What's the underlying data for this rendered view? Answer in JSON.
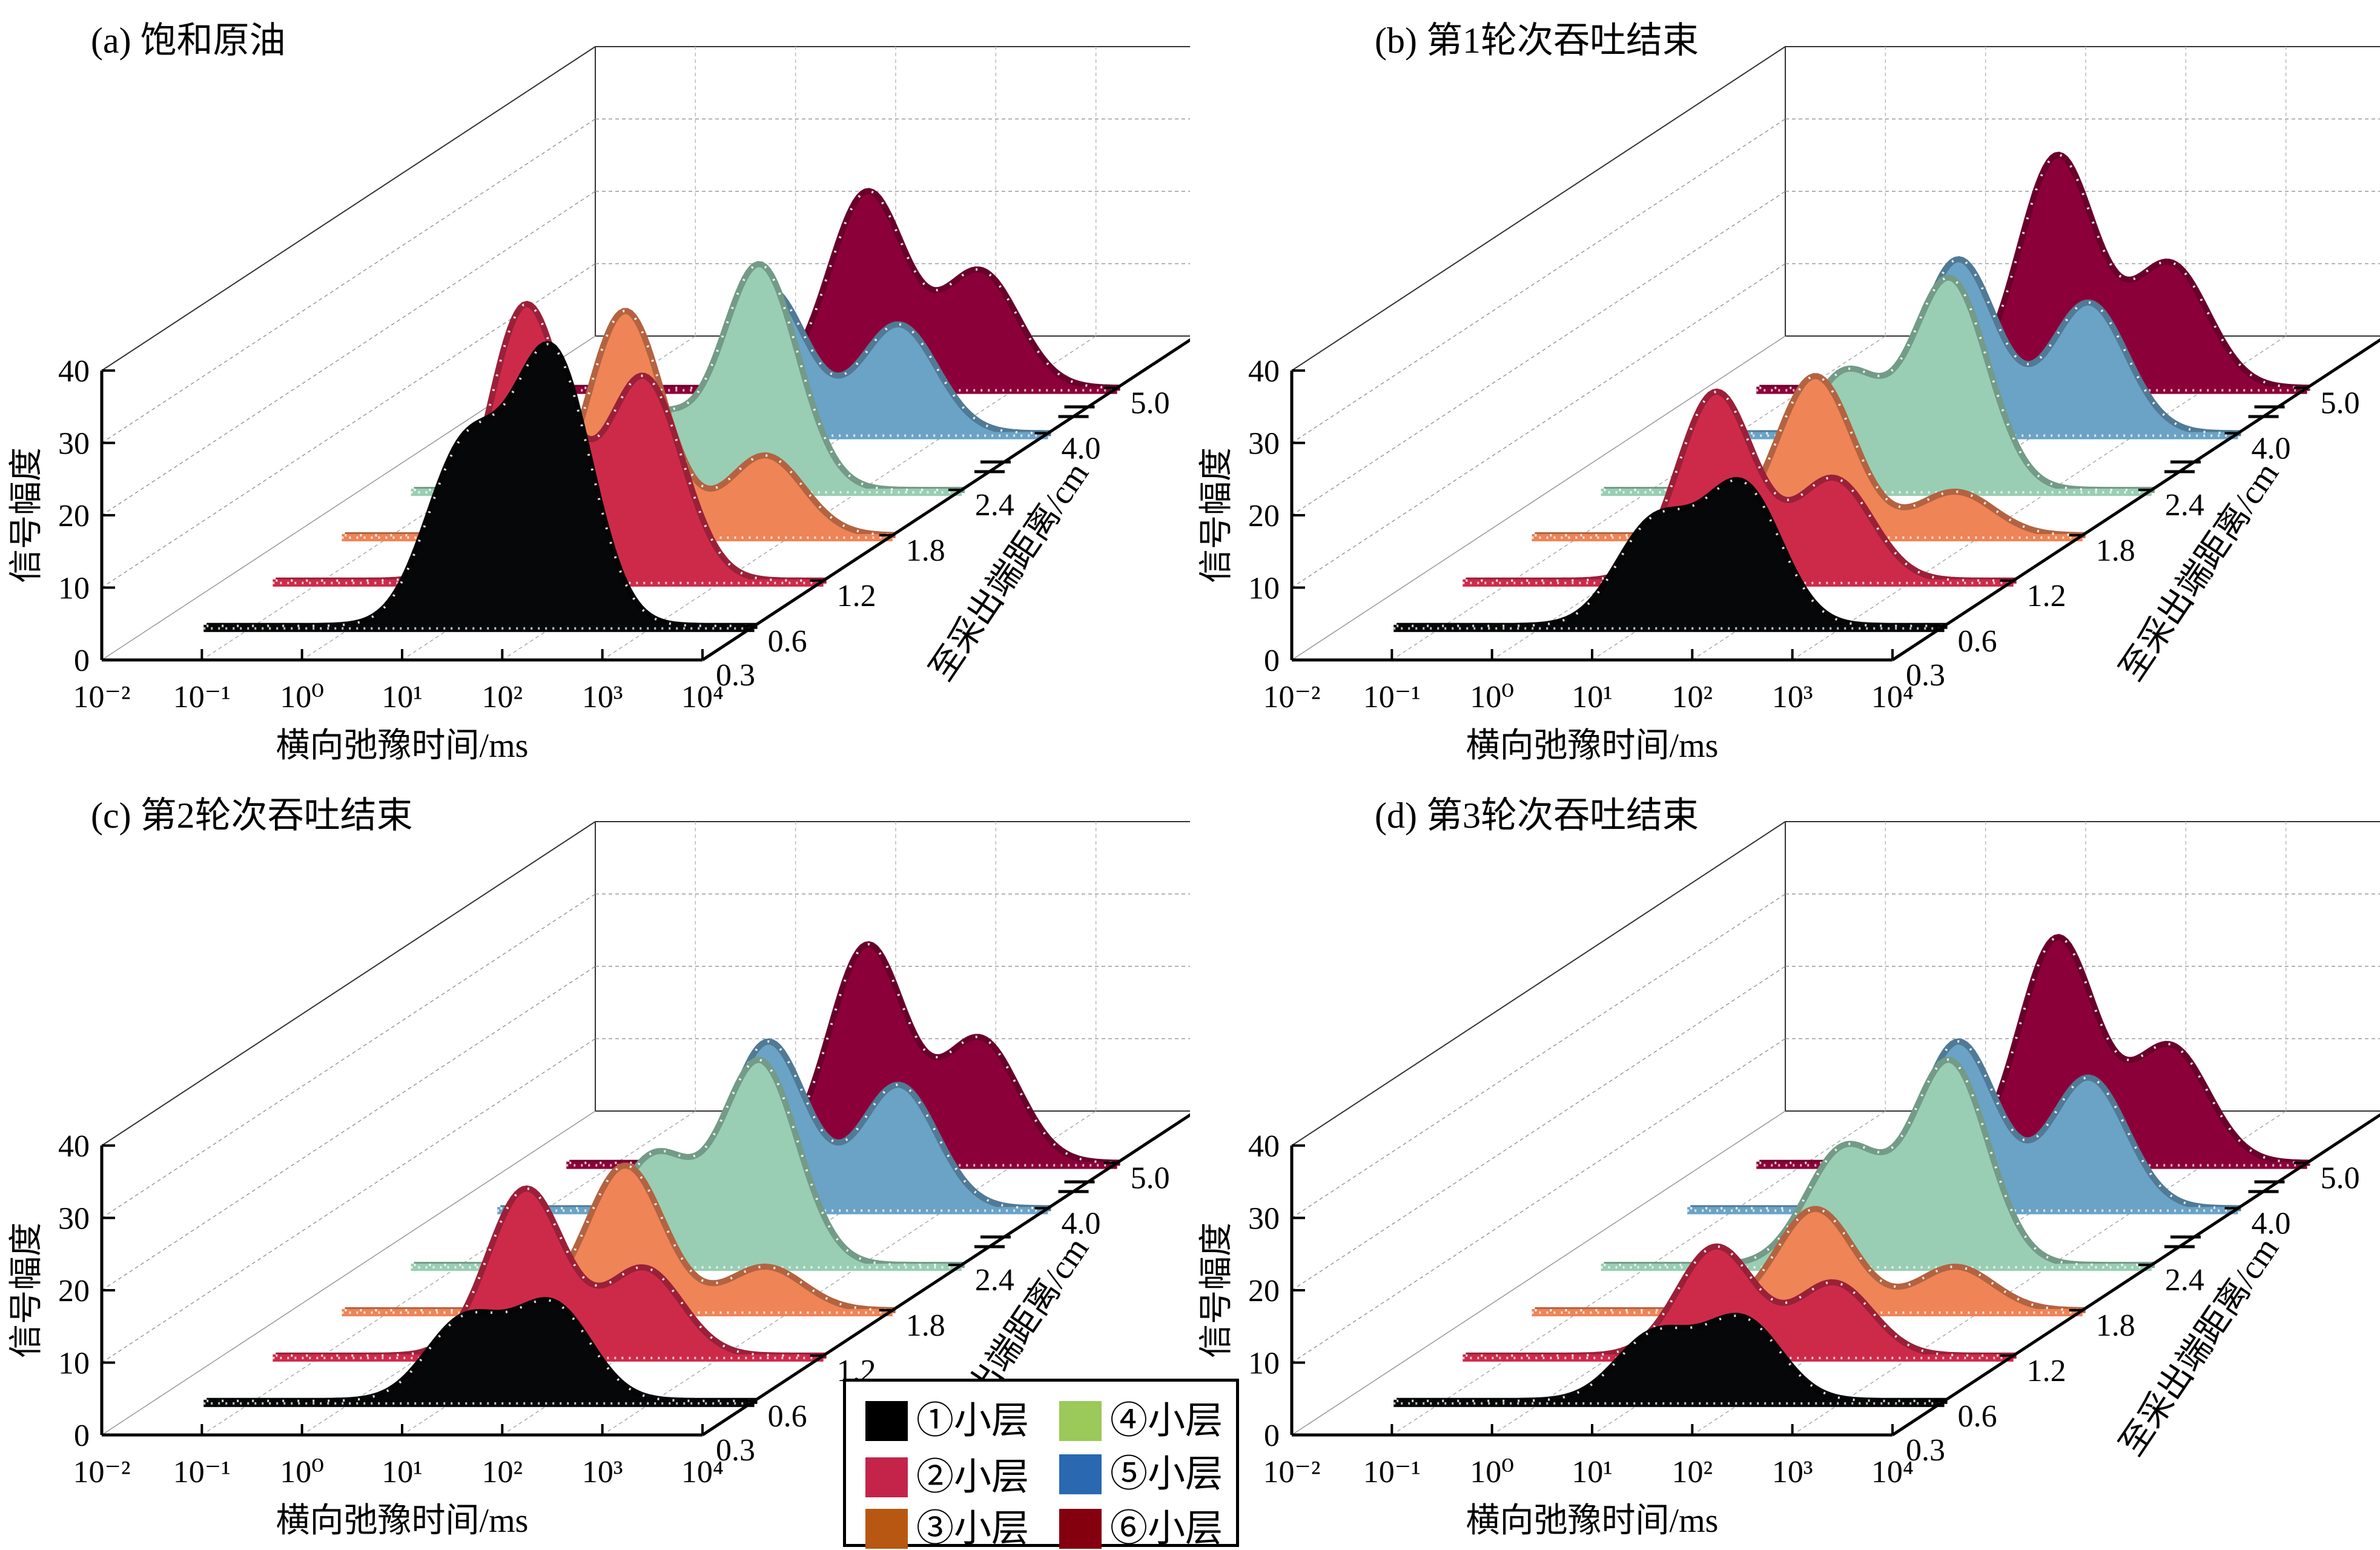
{
  "figure": {
    "legend": [
      {
        "label": "①小层",
        "color": "#000000"
      },
      {
        "label": "②小层",
        "color": "#c4244a"
      },
      {
        "label": "③小层",
        "color": "#b85712"
      },
      {
        "label": "④小层",
        "color": "#9bc95a"
      },
      {
        "label": "⑤小层",
        "color": "#2a68b2"
      },
      {
        "label": "⑥小层",
        "color": "#85000f"
      }
    ]
  },
  "chart_data": [
    {
      "type": "area",
      "title": "(a) 饱和原油",
      "xlabel": "横向弛豫时间/ms",
      "ylabel": "信号幅度",
      "zlabel": "至采出端距离/cm",
      "xscale": "log",
      "xlim": [
        0.01,
        10000
      ],
      "xticks": [
        "10⁻²",
        "10⁻¹",
        "10⁰",
        "10¹",
        "10²",
        "10³",
        "10⁴"
      ],
      "ylim": [
        0,
        40
      ],
      "yticks": [
        "0",
        "10",
        "20",
        "30",
        "40"
      ],
      "zticks": [
        "0.3",
        "0.6",
        "1.2",
        "1.8",
        "2.4",
        "4.0",
        "5.0"
      ],
      "grid": true,
      "series": [
        {
          "name": "①小层",
          "distance": 0.6,
          "fill": "#060708",
          "peaks": [
            {
              "t2": 12,
              "amp": 24
            },
            {
              "t2": 90,
              "amp": 37
            }
          ]
        },
        {
          "name": "②小层",
          "distance": 1.2,
          "fill": "#cd2a4a",
          "peaks": [
            {
              "t2": 10,
              "amp": 38
            },
            {
              "t2": 150,
              "amp": 28
            }
          ]
        },
        {
          "name": "③小层",
          "distance": 1.8,
          "fill": "#ef8456",
          "peaks": [
            {
              "t2": 20,
              "amp": 31
            },
            {
              "t2": 500,
              "amp": 11
            }
          ]
        },
        {
          "name": "④小层",
          "distance": 2.4,
          "fill": "#99ceb4",
          "peaks": [
            {
              "t2": 8,
              "amp": 10
            },
            {
              "t2": 90,
              "amp": 31
            }
          ]
        },
        {
          "name": "⑤小层",
          "distance": 4.0,
          "fill": "#6aa3c6",
          "peaks": [
            {
              "t2": 15,
              "amp": 20
            },
            {
              "t2": 300,
              "amp": 15
            }
          ]
        },
        {
          "name": "⑥小层",
          "distance": 5.0,
          "fill": "#8c0039",
          "peaks": [
            {
              "t2": 30,
              "amp": 27
            },
            {
              "t2": 400,
              "amp": 16
            }
          ]
        }
      ]
    },
    {
      "type": "area",
      "title": "(b) 第1轮次吞吐结束",
      "xlabel": "横向弛豫时间/ms",
      "ylabel": "信号幅度",
      "zlabel": "至采出端距离/cm",
      "xscale": "log",
      "xlim": [
        0.01,
        10000
      ],
      "xticks": [
        "10⁻²",
        "10⁻¹",
        "10⁰",
        "10¹",
        "10²",
        "10³",
        "10⁴"
      ],
      "ylim": [
        0,
        40
      ],
      "yticks": [
        "0",
        "10",
        "20",
        "30",
        "40"
      ],
      "zticks": [
        "0.3",
        "0.6",
        "1.2",
        "1.8",
        "2.4",
        "4.0",
        "5.0"
      ],
      "grid": true,
      "series": [
        {
          "name": "①小层",
          "distance": 0.6,
          "fill": "#060708",
          "peaks": [
            {
              "t2": 12,
              "amp": 14
            },
            {
              "t2": 90,
              "amp": 19
            }
          ]
        },
        {
          "name": "②小层",
          "distance": 1.2,
          "fill": "#cd2a4a",
          "peaks": [
            {
              "t2": 10,
              "amp": 26
            },
            {
              "t2": 150,
              "amp": 14
            }
          ]
        },
        {
          "name": "③小层",
          "distance": 1.8,
          "fill": "#ef8456",
          "peaks": [
            {
              "t2": 20,
              "amp": 22
            },
            {
              "t2": 500,
              "amp": 6
            }
          ]
        },
        {
          "name": "④小层",
          "distance": 2.4,
          "fill": "#99ceb4",
          "peaks": [
            {
              "t2": 8,
              "amp": 16
            },
            {
              "t2": 90,
              "amp": 29
            }
          ]
        },
        {
          "name": "⑤小层",
          "distance": 4.0,
          "fill": "#6aa3c6",
          "peaks": [
            {
              "t2": 15,
              "amp": 24
            },
            {
              "t2": 300,
              "amp": 18
            }
          ]
        },
        {
          "name": "⑥小层",
          "distance": 5.0,
          "fill": "#8c0039",
          "peaks": [
            {
              "t2": 30,
              "amp": 32
            },
            {
              "t2": 400,
              "amp": 17
            }
          ]
        }
      ]
    },
    {
      "type": "area",
      "title": "(c) 第2轮次吞吐结束",
      "xlabel": "横向弛豫时间/ms",
      "ylabel": "信号幅度",
      "zlabel": "至采出端距离/cm",
      "xscale": "log",
      "xlim": [
        0.01,
        10000
      ],
      "xticks": [
        "10⁻²",
        "10⁻¹",
        "10⁰",
        "10¹",
        "10²",
        "10³",
        "10⁴"
      ],
      "ylim": [
        0,
        40
      ],
      "yticks": [
        "0",
        "10",
        "20",
        "30",
        "40"
      ],
      "zticks": [
        "0.3",
        "0.6",
        "1.2",
        "1.8",
        "2.4",
        "4.0",
        "5.0"
      ],
      "grid": true,
      "series": [
        {
          "name": "①小层",
          "distance": 0.6,
          "fill": "#060708",
          "peaks": [
            {
              "t2": 12,
              "amp": 11
            },
            {
              "t2": 90,
              "amp": 13
            }
          ]
        },
        {
          "name": "②小层",
          "distance": 1.2,
          "fill": "#cd2a4a",
          "peaks": [
            {
              "t2": 10,
              "amp": 23
            },
            {
              "t2": 150,
              "amp": 12
            }
          ]
        },
        {
          "name": "③小层",
          "distance": 1.8,
          "fill": "#ef8456",
          "peaks": [
            {
              "t2": 20,
              "amp": 20
            },
            {
              "t2": 500,
              "amp": 6
            }
          ]
        },
        {
          "name": "④小层",
          "distance": 2.4,
          "fill": "#99ceb4",
          "peaks": [
            {
              "t2": 8,
              "amp": 15
            },
            {
              "t2": 90,
              "amp": 28
            }
          ]
        },
        {
          "name": "⑤小层",
          "distance": 4.0,
          "fill": "#6aa3c6",
          "peaks": [
            {
              "t2": 15,
              "amp": 23
            },
            {
              "t2": 300,
              "amp": 17
            }
          ]
        },
        {
          "name": "⑥小层",
          "distance": 5.0,
          "fill": "#8c0039",
          "peaks": [
            {
              "t2": 30,
              "amp": 30
            },
            {
              "t2": 400,
              "amp": 17
            }
          ]
        }
      ]
    },
    {
      "type": "area",
      "title": "(d) 第3轮次吞吐结束",
      "xlabel": "横向弛豫时间/ms",
      "ylabel": "信号幅度",
      "zlabel": "至采出端距离/cm",
      "xscale": "log",
      "xlim": [
        0.01,
        10000
      ],
      "xticks": [
        "10⁻²",
        "10⁻¹",
        "10⁰",
        "10¹",
        "10²",
        "10³",
        "10⁴"
      ],
      "ylim": [
        0,
        40
      ],
      "yticks": [
        "0",
        "10",
        "20",
        "30",
        "40"
      ],
      "zticks": [
        "0.3",
        "0.6",
        "1.2",
        "1.8",
        "2.4",
        "4.0",
        "5.0"
      ],
      "grid": true,
      "series": [
        {
          "name": "①小层",
          "distance": 0.6,
          "fill": "#060708",
          "peaks": [
            {
              "t2": 12,
              "amp": 9
            },
            {
              "t2": 90,
              "amp": 11
            }
          ]
        },
        {
          "name": "②小层",
          "distance": 1.2,
          "fill": "#cd2a4a",
          "peaks": [
            {
              "t2": 10,
              "amp": 15
            },
            {
              "t2": 150,
              "amp": 10
            }
          ]
        },
        {
          "name": "③小层",
          "distance": 1.8,
          "fill": "#ef8456",
          "peaks": [
            {
              "t2": 20,
              "amp": 14
            },
            {
              "t2": 500,
              "amp": 6
            }
          ]
        },
        {
          "name": "④小层",
          "distance": 2.4,
          "fill": "#99ceb4",
          "peaks": [
            {
              "t2": 8,
              "amp": 16
            },
            {
              "t2": 90,
              "amp": 28
            }
          ]
        },
        {
          "name": "⑤小层",
          "distance": 4.0,
          "fill": "#6aa3c6",
          "peaks": [
            {
              "t2": 15,
              "amp": 23
            },
            {
              "t2": 300,
              "amp": 18
            }
          ]
        },
        {
          "name": "⑥小层",
          "distance": 5.0,
          "fill": "#8c0039",
          "peaks": [
            {
              "t2": 30,
              "amp": 31
            },
            {
              "t2": 400,
              "amp": 16
            }
          ]
        }
      ]
    }
  ]
}
